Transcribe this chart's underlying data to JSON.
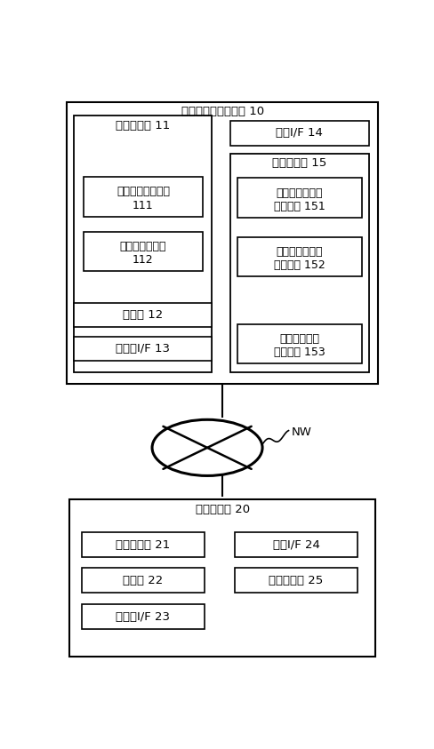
{
  "title_server": "義足情報提供サーバ 10",
  "title_user": "ユーザ端末 20",
  "label_processor11": "プロセッサ 11",
  "label_111_l1": "ユーザ情報受付部",
  "label_111_l2": "111",
  "label_112_l1": "推奨情報出力部",
  "label_112_l2": "112",
  "label_memory12": "メモリ 12",
  "label_io13": "入出力I/F 13",
  "label_comm14": "通信I/F 14",
  "label_storage15": "ストレージ 15",
  "label_151_l1": "義足ユーザ管理",
  "label_151_l2": "テーブル 151",
  "label_152_l1": "義肢製作所管理",
  "label_152_l2": "テーブル 152",
  "label_153_l1": "義足部品管理",
  "label_153_l2": "テーブル 153",
  "label_processor21": "プロセッサ 21",
  "label_comm24": "通信I/F 24",
  "label_memory22": "メモリ 22",
  "label_storage25": "ストレージ 25",
  "label_io23": "入出力I/F 23",
  "label_NW": "NW",
  "bg_color": "#ffffff",
  "ec": "#000000",
  "fc": "#ffffff",
  "fs": 9.5,
  "fs_small": 9.0,
  "lw_outer": 1.5,
  "lw_inner": 1.2
}
